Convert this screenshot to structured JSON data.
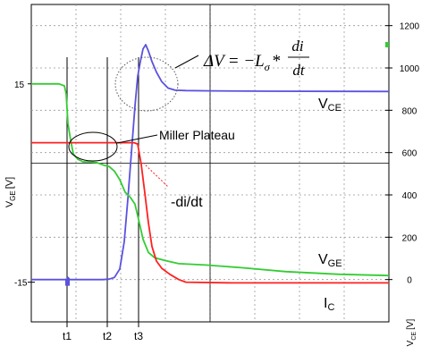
{
  "chart_data": {
    "type": "line",
    "left_axis": {
      "label": "V",
      "label_sub": "GE",
      "label_unit": "[V]",
      "ticks": [
        {
          "value": 15,
          "label": "15"
        },
        {
          "value": -15,
          "label": "-15"
        }
      ],
      "range": [
        -21,
        27
      ]
    },
    "right_axis": {
      "label": "V",
      "label_sub": "CE",
      "label_unit": "[V]",
      "ticks": [
        {
          "value": 0,
          "label": "0"
        },
        {
          "value": 200,
          "label": "200"
        },
        {
          "value": 400,
          "label": "400"
        },
        {
          "value": 600,
          "label": "600"
        },
        {
          "value": 800,
          "label": "800"
        },
        {
          "value": 1000,
          "label": "1000"
        },
        {
          "value": 1200,
          "label": "1200"
        }
      ],
      "range": [
        -200,
        1300
      ]
    },
    "time_markers": [
      {
        "label": "t1",
        "t": 75
      },
      {
        "label": "t2",
        "t": 120
      },
      {
        "label": "t3",
        "t": 155
      }
    ],
    "time_range": [
      35,
      435
    ],
    "series": [
      {
        "name": "V",
        "name_sub": "CE",
        "color": "#5a52e0",
        "axis": "right",
        "points": [
          [
            35,
            0
          ],
          [
            75,
            0
          ],
          [
            76,
            10
          ],
          [
            78,
            0
          ],
          [
            115,
            0
          ],
          [
            122,
            2
          ],
          [
            128,
            10
          ],
          [
            134,
            50
          ],
          [
            139,
            180
          ],
          [
            143,
            380
          ],
          [
            147,
            600
          ],
          [
            151,
            820
          ],
          [
            154,
            960
          ],
          [
            157,
            1030
          ],
          [
            160,
            1090
          ],
          [
            163,
            1110
          ],
          [
            166,
            1080
          ],
          [
            170,
            1030
          ],
          [
            175,
            980
          ],
          [
            181,
            935
          ],
          [
            188,
            905
          ],
          [
            196,
            895
          ],
          [
            208,
            893
          ],
          [
            235,
            892
          ],
          [
            300,
            890
          ],
          [
            435,
            889
          ]
        ]
      },
      {
        "name": "V",
        "name_sub": "GE",
        "color": "#33cc33",
        "axis": "left",
        "points": [
          [
            35,
            15
          ],
          [
            66,
            15
          ],
          [
            72,
            14.7
          ],
          [
            74,
            13.5
          ],
          [
            76,
            9
          ],
          [
            79,
            6.5
          ],
          [
            82,
            4.4
          ],
          [
            87,
            3.6
          ],
          [
            93,
            3.2
          ],
          [
            100,
            3.2
          ],
          [
            108,
            3.1
          ],
          [
            116,
            2.7
          ],
          [
            122,
            2.5
          ],
          [
            128,
            1.8
          ],
          [
            134,
            0.5
          ],
          [
            140,
            -1.4
          ],
          [
            146,
            -2.2
          ],
          [
            151,
            -3.2
          ],
          [
            155,
            -5.5
          ],
          [
            160,
            -8.5
          ],
          [
            166,
            -10.5
          ],
          [
            173,
            -11.3
          ],
          [
            184,
            -11.7
          ],
          [
            200,
            -12.2
          ],
          [
            230,
            -12.4
          ],
          [
            270,
            -12.8
          ],
          [
            320,
            -13.4
          ],
          [
            380,
            -13.8
          ],
          [
            435,
            -14
          ]
        ]
      },
      {
        "name": "I",
        "name_sub": "C",
        "color": "#ff2020",
        "axis": "left",
        "points": [
          [
            35,
            6.1
          ],
          [
            150,
            6.1
          ],
          [
            154,
            5.9
          ],
          [
            158,
            2.8
          ],
          [
            162,
            -1.5
          ],
          [
            166,
            -6
          ],
          [
            170,
            -9.6
          ],
          [
            175,
            -11.8
          ],
          [
            181,
            -12.9
          ],
          [
            190,
            -13.8
          ],
          [
            200,
            -14.6
          ],
          [
            208,
            -15
          ],
          [
            260,
            -15.1
          ],
          [
            435,
            -15.1
          ]
        ]
      }
    ],
    "annotations": {
      "miller": "Miller Plateau",
      "didt": "-di/dt",
      "equation": {
        "delta": "ΔV",
        "eq": "= −L",
        "sigma": "σ",
        "star": "*",
        "num": "di",
        "den": "dt"
      }
    }
  }
}
